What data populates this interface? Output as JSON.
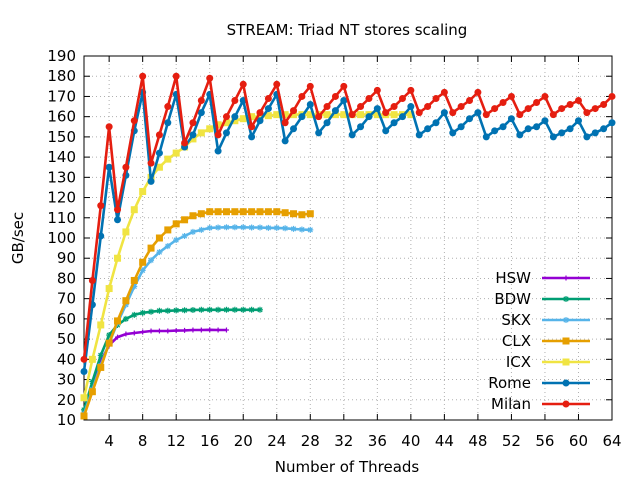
{
  "chart_data": {
    "type": "line",
    "title": "STREAM: Triad NT stores scaling",
    "xlabel": "Number of Threads",
    "ylabel": "GB/sec",
    "xlim": [
      1,
      64
    ],
    "ylim": [
      10,
      190
    ],
    "x_ticks": [
      4,
      8,
      12,
      16,
      20,
      24,
      28,
      32,
      36,
      40,
      44,
      48,
      52,
      56,
      60,
      64
    ],
    "y_ticks": [
      10,
      20,
      30,
      40,
      50,
      60,
      70,
      80,
      90,
      100,
      110,
      120,
      130,
      140,
      150,
      160,
      170,
      180,
      190
    ],
    "grid": true,
    "legend_position": "bottom-right",
    "series": [
      {
        "name": "HSW",
        "color": "#9400d3",
        "marker": "plus",
        "x": [
          1,
          2,
          3,
          4,
          5,
          6,
          7,
          8,
          9,
          10,
          11,
          12,
          13,
          14,
          15,
          16,
          17,
          18
        ],
        "y": [
          13,
          27,
          39,
          47,
          51,
          52.5,
          53,
          53.5,
          54,
          54,
          54,
          54.2,
          54.3,
          54.5,
          54.5,
          54.6,
          54.5,
          54.5
        ]
      },
      {
        "name": "BDW",
        "color": "#009e73",
        "marker": "star",
        "x": [
          1,
          2,
          3,
          4,
          5,
          6,
          7,
          8,
          9,
          10,
          11,
          12,
          13,
          14,
          15,
          16,
          17,
          18,
          19,
          20,
          21,
          22
        ],
        "y": [
          15,
          29,
          42,
          52,
          57,
          60,
          62,
          63,
          63.5,
          64,
          64,
          64.2,
          64.3,
          64.4,
          64.5,
          64.5,
          64.5,
          64.5,
          64.5,
          64.5,
          64.5,
          64.5
        ]
      },
      {
        "name": "SKX",
        "color": "#56b4e9",
        "marker": "star",
        "x": [
          1,
          2,
          3,
          4,
          5,
          6,
          7,
          8,
          9,
          10,
          11,
          12,
          13,
          14,
          15,
          16,
          17,
          18,
          19,
          20,
          21,
          22,
          23,
          24,
          25,
          26,
          27,
          28
        ],
        "y": [
          13,
          25,
          37,
          48,
          58,
          67,
          76,
          84,
          89,
          93,
          96,
          99,
          101,
          103,
          104,
          105,
          105.2,
          105.3,
          105.3,
          105.3,
          105.2,
          105.2,
          105,
          105,
          104.8,
          104.5,
          104.2,
          104
        ]
      },
      {
        "name": "CLX",
        "color": "#e69f00",
        "marker": "square",
        "x": [
          1,
          2,
          3,
          4,
          5,
          6,
          7,
          8,
          9,
          10,
          11,
          12,
          13,
          14,
          15,
          16,
          17,
          18,
          19,
          20,
          21,
          22,
          23,
          24,
          25,
          26,
          27,
          28
        ],
        "y": [
          12,
          24,
          36,
          48,
          59,
          69,
          79,
          88,
          95,
          100,
          104,
          107,
          109,
          111,
          112,
          113,
          113,
          113,
          113,
          113,
          113,
          113,
          113,
          113,
          112.5,
          112,
          111.5,
          112
        ]
      },
      {
        "name": "ICX",
        "color": "#f0e442",
        "marker": "square",
        "x": [
          1,
          2,
          3,
          4,
          5,
          6,
          7,
          8,
          9,
          10,
          11,
          12,
          13,
          14,
          15,
          16,
          17,
          18,
          19,
          20,
          21,
          22,
          23,
          24,
          25,
          26,
          27,
          28,
          29,
          30,
          31,
          32,
          33,
          34,
          35,
          36,
          37,
          38,
          39,
          40
        ],
        "y": [
          21,
          40,
          57,
          75,
          90,
          103,
          114,
          123,
          130,
          135,
          139,
          142,
          145,
          149,
          152,
          154,
          156,
          157,
          158,
          159,
          160,
          160,
          160.5,
          161,
          161,
          161,
          161,
          161,
          161,
          161,
          161,
          161,
          161,
          161,
          161,
          161,
          161,
          161,
          161,
          161
        ]
      },
      {
        "name": "Rome",
        "color": "#0072b2",
        "marker": "circle",
        "x": [
          1,
          2,
          3,
          4,
          5,
          6,
          7,
          8,
          9,
          10,
          11,
          12,
          13,
          14,
          15,
          16,
          17,
          18,
          19,
          20,
          21,
          22,
          23,
          24,
          25,
          26,
          27,
          28,
          29,
          30,
          31,
          32,
          33,
          34,
          35,
          36,
          37,
          38,
          39,
          40,
          41,
          42,
          43,
          44,
          45,
          46,
          47,
          48,
          49,
          50,
          51,
          52,
          53,
          54,
          55,
          56,
          57,
          58,
          59,
          60,
          61,
          62,
          63,
          64
        ],
        "y": [
          34,
          67,
          101,
          135,
          109,
          131,
          153,
          172,
          128,
          142,
          157,
          171,
          145,
          151,
          162,
          171,
          143,
          152,
          160,
          168,
          150,
          158,
          164,
          171,
          148,
          154,
          160,
          166,
          152,
          157,
          163,
          168,
          151,
          155,
          160,
          164,
          153,
          157,
          160,
          165,
          151,
          154,
          157,
          162,
          152,
          155,
          159,
          162,
          150,
          153,
          155,
          159,
          151,
          154,
          155,
          158,
          150,
          152,
          154,
          158,
          150,
          152,
          154,
          157
        ]
      },
      {
        "name": "Milan",
        "color": "#e51e10",
        "marker": "circle",
        "x": [
          1,
          2,
          3,
          4,
          5,
          6,
          7,
          8,
          9,
          10,
          11,
          12,
          13,
          14,
          15,
          16,
          17,
          18,
          19,
          20,
          21,
          22,
          23,
          24,
          25,
          26,
          27,
          28,
          29,
          30,
          31,
          32,
          33,
          34,
          35,
          36,
          37,
          38,
          39,
          40,
          41,
          42,
          43,
          44,
          45,
          46,
          47,
          48,
          49,
          50,
          51,
          52,
          53,
          54,
          55,
          56,
          57,
          58,
          59,
          60,
          61,
          62,
          63,
          64
        ],
        "y": [
          40,
          79,
          116,
          155,
          114,
          135,
          158,
          180,
          137,
          151,
          165,
          180,
          147,
          157,
          168,
          179,
          151,
          160,
          168,
          176,
          155,
          162,
          169,
          176,
          157,
          163,
          170,
          175,
          160,
          165,
          170,
          175,
          161,
          165,
          169,
          173,
          162,
          165,
          169,
          173,
          162,
          165,
          169,
          172,
          162,
          165,
          168,
          172,
          161,
          164,
          167,
          170,
          161,
          164,
          167,
          170,
          161,
          164,
          166,
          168,
          162,
          164,
          166,
          170
        ]
      }
    ]
  }
}
